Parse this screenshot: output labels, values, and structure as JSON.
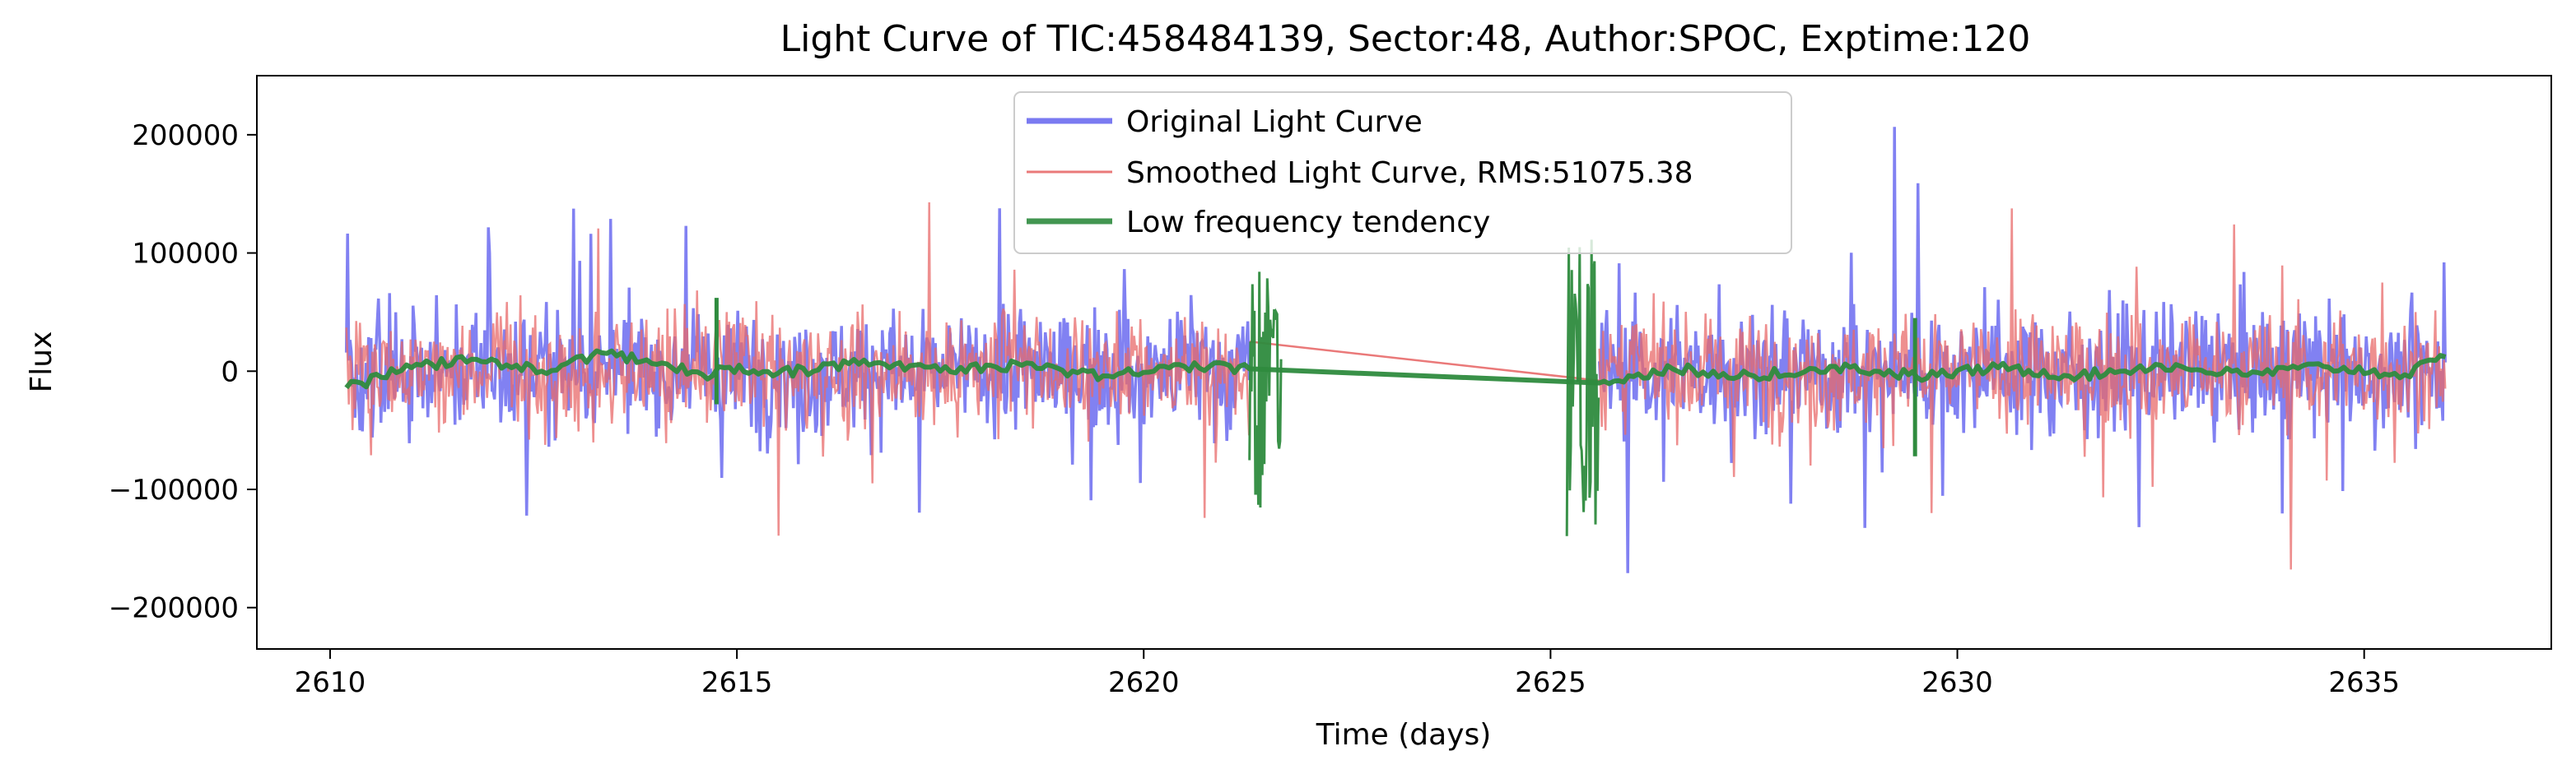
{
  "chart_data": {
    "type": "line",
    "title": "Light Curve of TIC:458484139, Sector:48, Author:SPOC, Exptime:120",
    "xlabel": "Time (days)",
    "ylabel": "Flux",
    "xlim": [
      2609.1,
      2637.3
    ],
    "ylim": [
      -235000,
      250000
    ],
    "x_ticks": [
      2610,
      2615,
      2620,
      2625,
      2630,
      2635
    ],
    "x_tick_labels": [
      "2610",
      "2615",
      "2620",
      "2625",
      "2630",
      "2635"
    ],
    "y_ticks": [
      -200000,
      -100000,
      0,
      100000,
      200000
    ],
    "y_tick_labels": [
      "−200000",
      "−100000",
      "0",
      "100000",
      "200000"
    ],
    "grid": false,
    "legend_position": "top-center",
    "segments": [
      {
        "start": 2610.2,
        "end": 2621.3
      },
      {
        "start": 2625.6,
        "end": 2636.0
      }
    ],
    "series": [
      {
        "name": "Original Light Curve",
        "color": "#6b6bf0",
        "style": "noisy-band",
        "typical_range": [
          -100000,
          130000
        ],
        "max_peak": 225000,
        "min_dip": -210000
      },
      {
        "name": "Smoothed Light Curve, RMS:51075.38",
        "color": "#e86a6a",
        "style": "noisy-band",
        "typical_range": [
          -95000,
          125000
        ]
      },
      {
        "name": "Low frequency tendency",
        "color": "#2e8b3e",
        "style": "trend",
        "x": [
          2610.2,
          2611.0,
          2611.8,
          2612.6,
          2613.4,
          2614.2,
          2614.7,
          2614.85,
          2615.5,
          2616.5,
          2617.5,
          2618.5,
          2619.5,
          2620.5,
          2621.3,
          2625.6,
          2626.5,
          2627.5,
          2628.5,
          2629.4,
          2629.5,
          2630.5,
          2631.5,
          2632.5,
          2633.5,
          2634.5,
          2635.5,
          2636.0
        ],
        "y": [
          -14000,
          3000,
          10000,
          0,
          15000,
          3000,
          -4000,
          3000,
          -2000,
          6000,
          0,
          5000,
          -4000,
          4000,
          2000,
          -10000,
          2000,
          -4000,
          4000,
          -3000,
          -5000,
          3000,
          -4000,
          5000,
          -3000,
          4000,
          -3000,
          12000
        ],
        "spikes": [
          {
            "x": 2614.75,
            "min": -28000,
            "max": 62000
          },
          {
            "x": 2629.48,
            "min": -72000,
            "max": 45000
          }
        ],
        "gap_bursts": [
          {
            "start": 2621.3,
            "end": 2621.7,
            "min": -118000,
            "max": 90000
          },
          {
            "start": 2625.2,
            "end": 2625.6,
            "min": -145000,
            "max": 115000
          }
        ]
      }
    ]
  }
}
